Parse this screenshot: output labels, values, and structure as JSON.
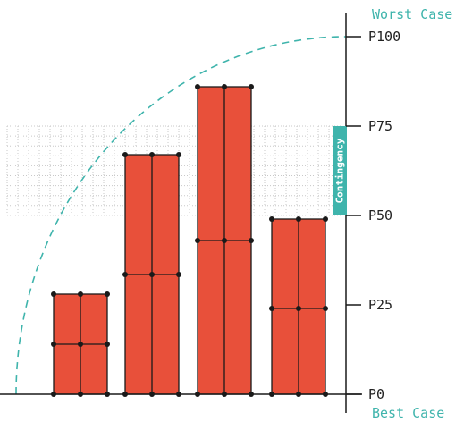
{
  "chart_data": {
    "type": "bar",
    "title": "",
    "xlabel": "",
    "ylabel": "",
    "ylim": [
      0,
      100
    ],
    "yticks": [
      {
        "value": 0,
        "label": "P0"
      },
      {
        "value": 25,
        "label": "P25"
      },
      {
        "value": 50,
        "label": "P50"
      },
      {
        "value": 75,
        "label": "P75"
      },
      {
        "value": 100,
        "label": "P100"
      }
    ],
    "axis_labels": {
      "top": "Worst Case",
      "bottom": "Best Case"
    },
    "bars": [
      {
        "top": 28,
        "divisions": [
          14
        ]
      },
      {
        "top": 67,
        "divisions": [
          33.5
        ]
      },
      {
        "top": 86,
        "divisions": [
          43
        ]
      },
      {
        "top": 49,
        "divisions": [
          24
        ]
      }
    ],
    "contingency_band": {
      "label": "Contingency",
      "from": 50,
      "to": 75
    },
    "grid": "dotted, within contingency band",
    "trend_curve": "dashed quarter arc from P0 to P100"
  },
  "colors": {
    "bar_fill": "#E8503A",
    "bar_stroke": "#1a1a1a",
    "accent": "#3FB4AC",
    "axis": "#1a1a1a",
    "grid": "#c8c8c8"
  }
}
